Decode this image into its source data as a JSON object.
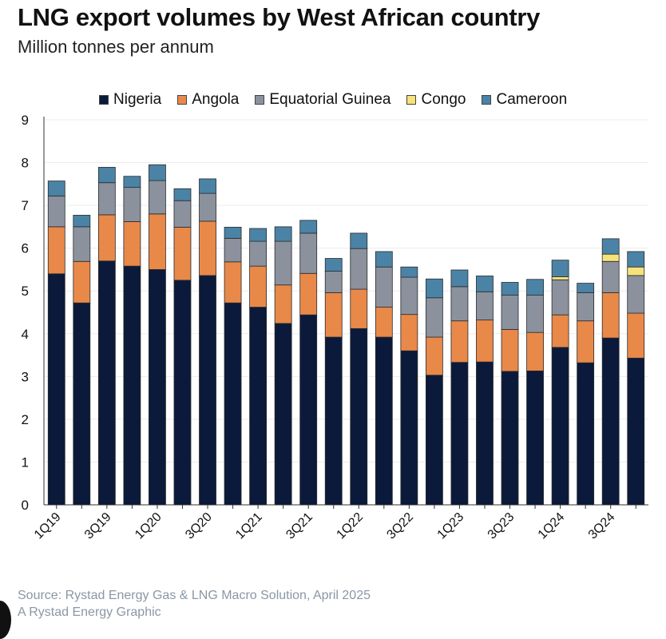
{
  "header": {
    "title": "LNG export volumes by West African country",
    "subtitle": "Million tonnes per annum"
  },
  "footer": {
    "source": "Source: Rystad Energy Gas & LNG Macro Solution, April 2025",
    "credit": "A Rystad Energy Graphic"
  },
  "chart_data": {
    "type": "bar",
    "stacked": true,
    "title": "LNG export volumes by West African country",
    "subtitle": "Million tonnes per annum",
    "xlabel": "",
    "ylabel": "",
    "ylim": [
      0,
      9
    ],
    "yticks": [
      0,
      1,
      2,
      3,
      4,
      5,
      6,
      7,
      8,
      9
    ],
    "grid": true,
    "legend_position": "top",
    "categories": [
      "1Q19",
      "2Q19",
      "3Q19",
      "4Q19",
      "1Q20",
      "2Q20",
      "3Q20",
      "4Q20",
      "1Q21",
      "2Q21",
      "3Q21",
      "4Q21",
      "1Q22",
      "2Q22",
      "3Q22",
      "4Q22",
      "1Q23",
      "2Q23",
      "3Q23",
      "4Q23",
      "1Q24",
      "2Q24",
      "3Q24",
      "4Q24"
    ],
    "tick_labels": [
      "1Q19",
      "",
      "3Q19",
      "",
      "1Q20",
      "",
      "3Q20",
      "",
      "1Q21",
      "",
      "3Q21",
      "",
      "1Q22",
      "",
      "3Q22",
      "",
      "1Q23",
      "",
      "3Q23",
      "",
      "1Q24",
      "",
      "3Q24",
      ""
    ],
    "series": [
      {
        "name": "Nigeria",
        "color": "#0b1a3a",
        "values": [
          5.4,
          4.72,
          5.7,
          5.58,
          5.5,
          5.25,
          5.36,
          4.72,
          4.62,
          4.24,
          4.44,
          3.92,
          4.12,
          3.92,
          3.6,
          3.03,
          3.33,
          3.34,
          3.12,
          3.13,
          3.68,
          3.32,
          3.9,
          3.43
        ]
      },
      {
        "name": "Angola",
        "color": "#e8894a",
        "values": [
          1.1,
          0.97,
          1.08,
          1.04,
          1.3,
          1.24,
          1.27,
          0.96,
          0.96,
          0.9,
          0.97,
          1.04,
          0.92,
          0.7,
          0.85,
          0.89,
          0.97,
          0.98,
          0.98,
          0.9,
          0.76,
          0.98,
          1.06,
          1.05
        ]
      },
      {
        "name": "Equatorial Guinea",
        "color": "#8b929e",
        "values": [
          0.72,
          0.81,
          0.75,
          0.8,
          0.78,
          0.62,
          0.65,
          0.55,
          0.58,
          1.02,
          0.94,
          0.5,
          0.95,
          0.94,
          0.87,
          0.92,
          0.8,
          0.66,
          0.8,
          0.87,
          0.82,
          0.66,
          0.73,
          0.88
        ]
      },
      {
        "name": "Congo",
        "color": "#f7e27a",
        "values": [
          0,
          0,
          0,
          0,
          0,
          0,
          0,
          0,
          0,
          0,
          0,
          0,
          0,
          0,
          0,
          0,
          0,
          0,
          0,
          0,
          0.07,
          0,
          0.17,
          0.2
        ]
      },
      {
        "name": "Cameroon",
        "color": "#4a83a6",
        "values": [
          0.35,
          0.27,
          0.36,
          0.26,
          0.37,
          0.28,
          0.34,
          0.26,
          0.3,
          0.34,
          0.3,
          0.3,
          0.36,
          0.36,
          0.24,
          0.44,
          0.39,
          0.37,
          0.3,
          0.37,
          0.39,
          0.22,
          0.36,
          0.36
        ]
      }
    ]
  }
}
